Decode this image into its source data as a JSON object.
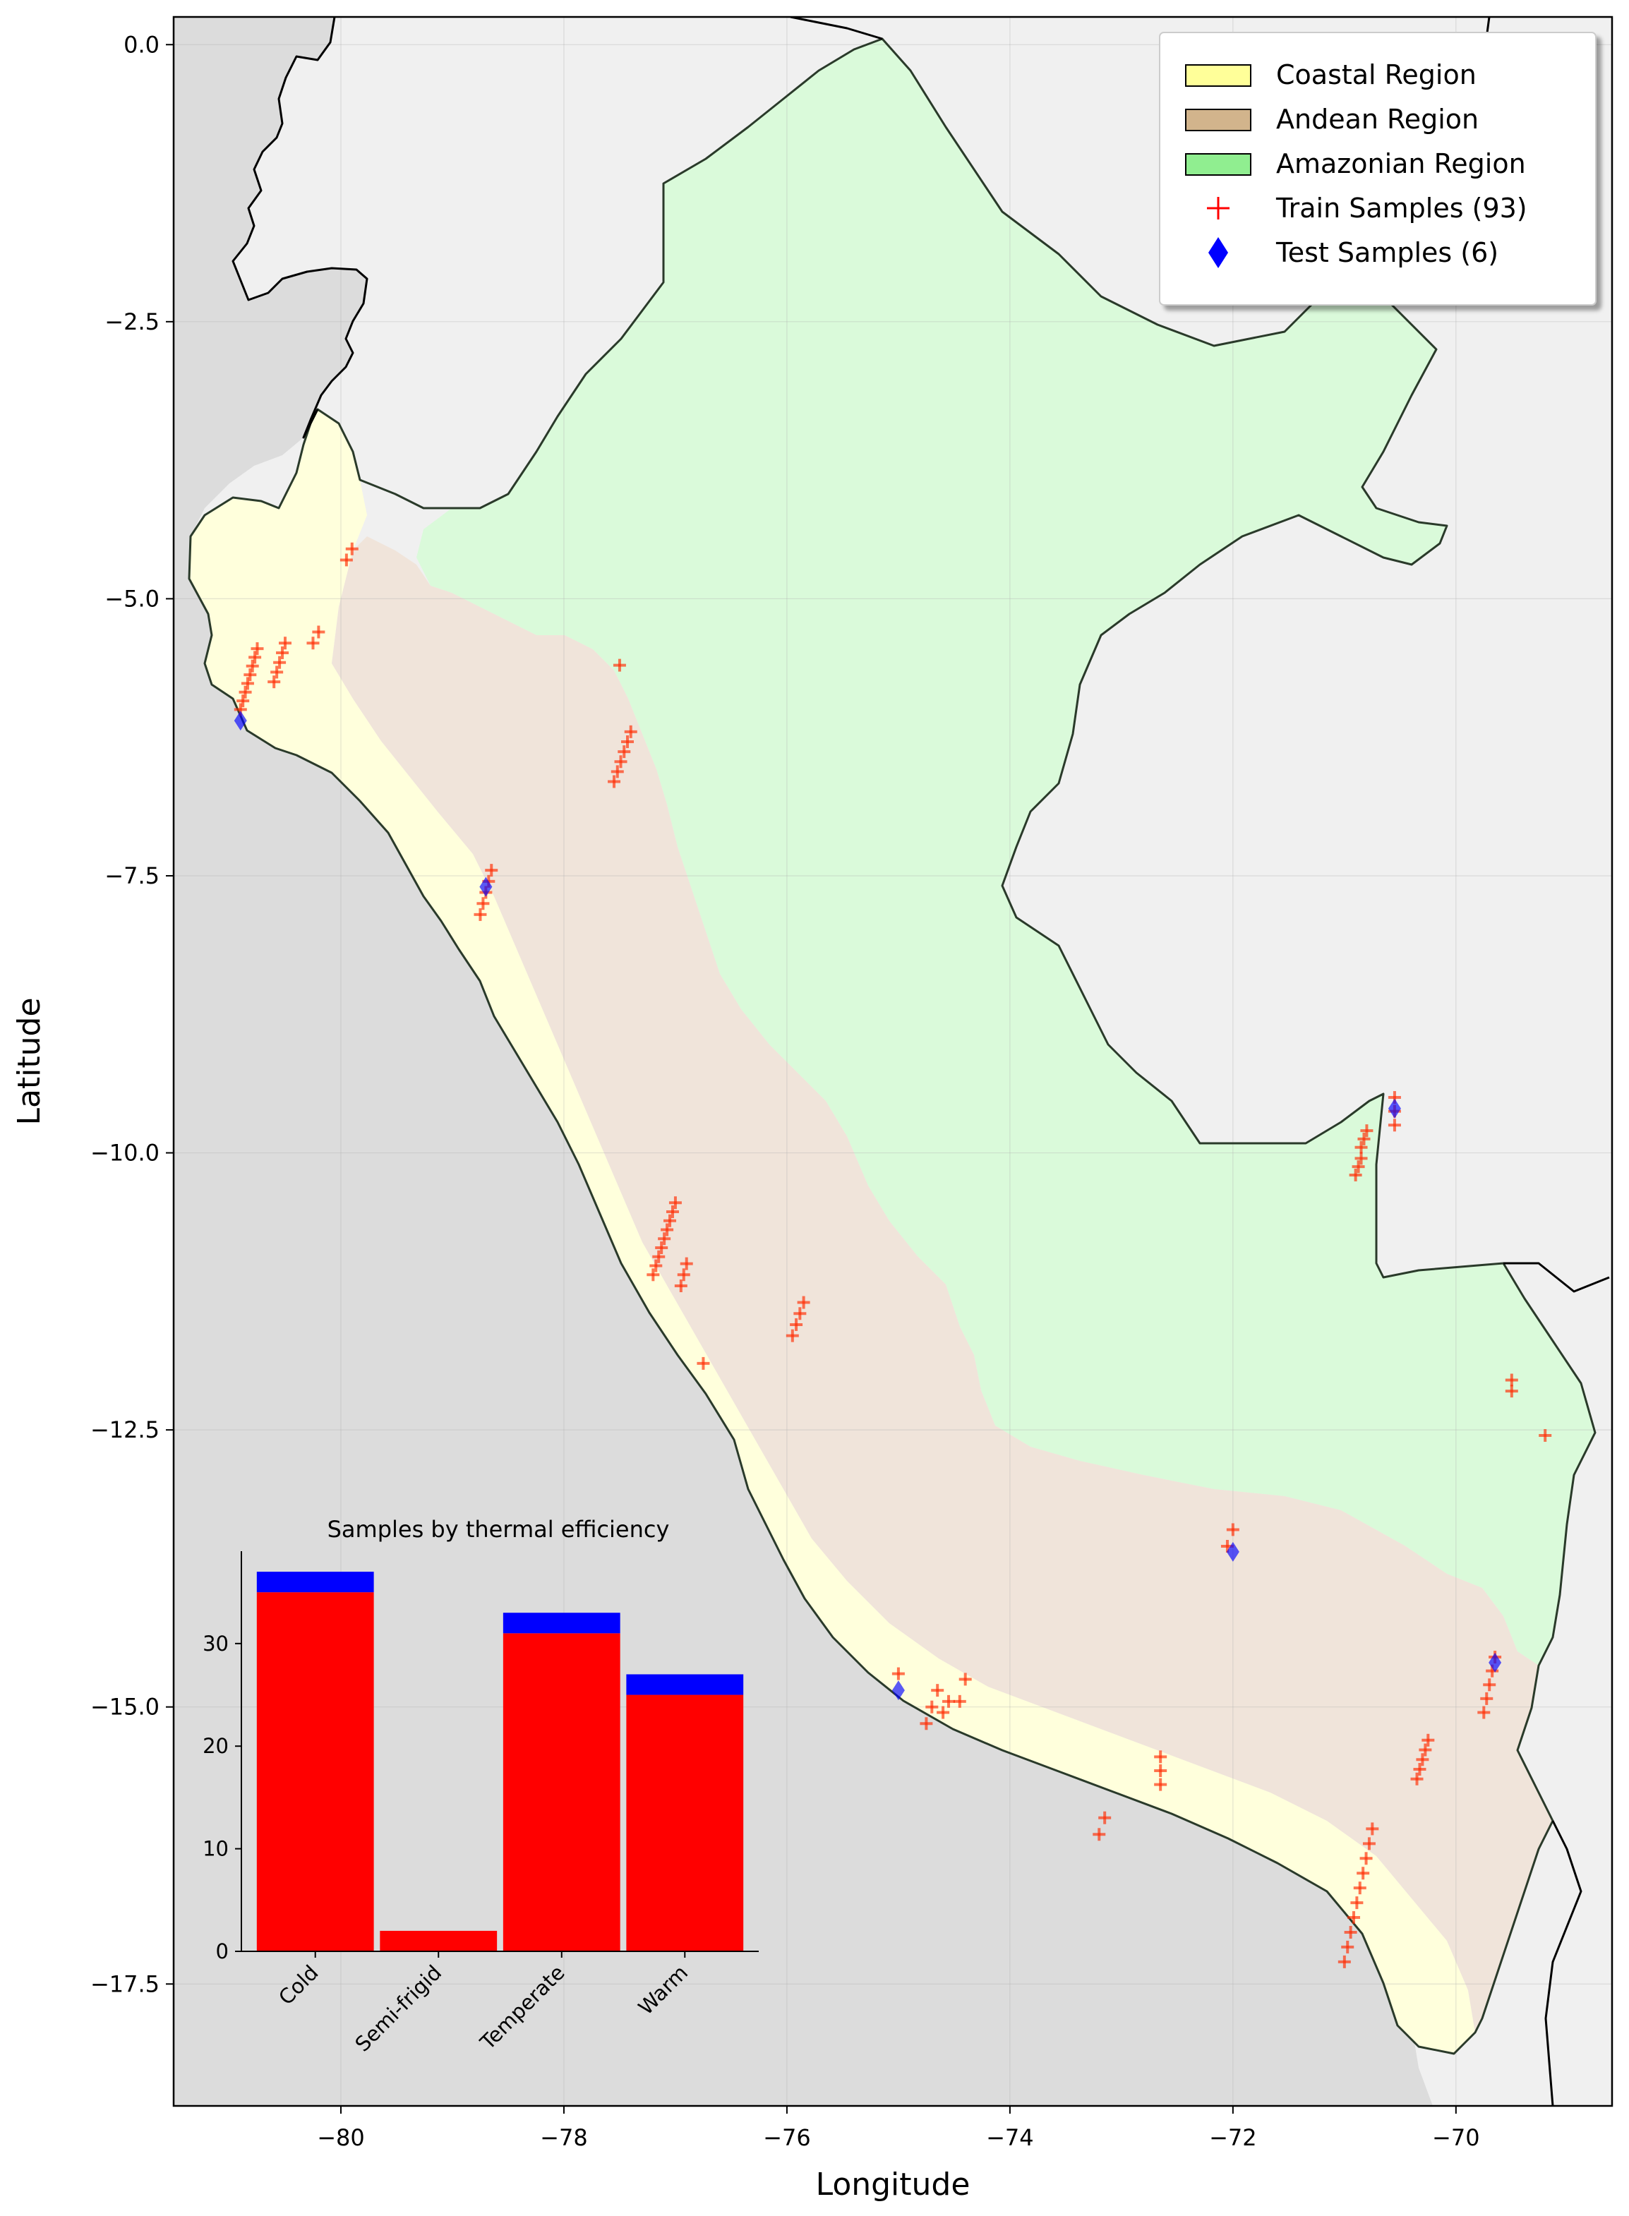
{
  "chart_data": [
    {
      "type": "scatter",
      "xlabel": "Longitude",
      "ylabel": "Latitude",
      "xlim": [
        -81.5,
        -68.6
      ],
      "ylim": [
        -18.6,
        0.25
      ],
      "xticks": [
        -80,
        -78,
        -76,
        -74,
        -72,
        -70
      ],
      "yticks": [
        0.0,
        -2.5,
        -5.0,
        -7.5,
        -10.0,
        -12.5,
        -15.0,
        -17.5
      ],
      "xtick_labels": [
        "−80",
        "−78",
        "−76",
        "−74",
        "−72",
        "−70"
      ],
      "ytick_labels": [
        "0.0",
        "−2.5",
        "−5.0",
        "−7.5",
        "−10.0",
        "−12.5",
        "−15.0",
        "−17.5"
      ],
      "grid": true,
      "legend_position": "top-right",
      "legend": [
        {
          "label": "Coastal Region",
          "kind": "patch",
          "color": "#ffff99"
        },
        {
          "label": "Andean Region",
          "kind": "patch",
          "color": "#d2b48c"
        },
        {
          "label": "Amazonian Region",
          "kind": "patch",
          "color": "#90ee90"
        },
        {
          "label": "Train Samples (93)",
          "kind": "plus",
          "color": "#ff0000"
        },
        {
          "label": "Test Samples (6)",
          "kind": "diamond",
          "color": "#0000ff"
        }
      ],
      "region_colors": {
        "coastal": "#ffffdc",
        "andean": "#f0e4da",
        "amazonian": "#dafada",
        "ocean": "#dcdcdc",
        "land": "#f0f0f0"
      },
      "train_clusters": [
        {
          "from": [
            -80.75,
            -5.45
          ],
          "to": [
            -80.9,
            -6.0
          ],
          "n": 8
        },
        {
          "from": [
            -80.5,
            -5.4
          ],
          "to": [
            -80.6,
            -5.75
          ],
          "n": 5
        },
        {
          "from": [
            -80.2,
            -5.3
          ],
          "to": [
            -80.25,
            -5.4
          ],
          "n": 2
        },
        {
          "from": [
            -79.9,
            -4.55
          ],
          "to": [
            -79.95,
            -4.65
          ],
          "n": 2
        },
        {
          "from": [
            -77.5,
            -5.6
          ],
          "to": [
            -77.5,
            -5.6
          ],
          "n": 1
        },
        {
          "from": [
            -77.4,
            -6.2
          ],
          "to": [
            -77.55,
            -6.65
          ],
          "n": 6
        },
        {
          "from": [
            -78.65,
            -7.45
          ],
          "to": [
            -78.75,
            -7.85
          ],
          "n": 5
        },
        {
          "from": [
            -77.0,
            -10.45
          ],
          "to": [
            -77.2,
            -11.1
          ],
          "n": 9
        },
        {
          "from": [
            -76.9,
            -11.0
          ],
          "to": [
            -76.95,
            -11.2
          ],
          "n": 3
        },
        {
          "from": [
            -76.75,
            -11.9
          ],
          "to": [
            -76.75,
            -11.9
          ],
          "n": 1
        },
        {
          "from": [
            -75.85,
            -11.35
          ],
          "to": [
            -75.95,
            -11.65
          ],
          "n": 4
        },
        {
          "from": [
            -72.0,
            -13.4
          ],
          "to": [
            -72.05,
            -13.55
          ],
          "n": 2
        },
        {
          "from": [
            -70.55,
            -9.5
          ],
          "to": [
            -70.55,
            -9.75
          ],
          "n": 3
        },
        {
          "from": [
            -70.8,
            -9.8
          ],
          "to": [
            -70.85,
            -9.95
          ],
          "n": 3
        },
        {
          "from": [
            -70.85,
            -10.05
          ],
          "to": [
            -70.9,
            -10.2
          ],
          "n": 3
        },
        {
          "from": [
            -69.5,
            -12.05
          ],
          "to": [
            -69.5,
            -12.15
          ],
          "n": 2
        },
        {
          "from": [
            -69.2,
            -12.55
          ],
          "to": [
            -69.2,
            -12.55
          ],
          "n": 1
        },
        {
          "from": [
            -69.65,
            -14.55
          ],
          "to": [
            -69.75,
            -15.05
          ],
          "n": 5
        },
        {
          "from": [
            -70.25,
            -15.3
          ],
          "to": [
            -70.35,
            -15.65
          ],
          "n": 5
        },
        {
          "from": [
            -70.75,
            -16.1
          ],
          "to": [
            -71.0,
            -17.3
          ],
          "n": 10
        },
        {
          "from": [
            -72.65,
            -15.45
          ],
          "to": [
            -72.65,
            -15.7
          ],
          "n": 3
        },
        {
          "from": [
            -73.15,
            -16.0
          ],
          "to": [
            -73.2,
            -16.15
          ],
          "n": 2
        },
        {
          "from": [
            -74.4,
            -14.75
          ],
          "to": [
            -74.45,
            -14.95
          ],
          "n": 2
        },
        {
          "from": [
            -74.55,
            -14.95
          ],
          "to": [
            -74.6,
            -15.05
          ],
          "n": 2
        },
        {
          "from": [
            -74.65,
            -14.85
          ],
          "to": [
            -74.75,
            -15.15
          ],
          "n": 3
        },
        {
          "from": [
            -75.0,
            -14.7
          ],
          "to": [
            -75.0,
            -14.75
          ],
          "n": 1
        }
      ],
      "test_points": [
        {
          "lon": -80.9,
          "lat": -6.1
        },
        {
          "lon": -78.7,
          "lat": -7.6
        },
        {
          "lon": -70.55,
          "lat": -9.6
        },
        {
          "lon": -72.0,
          "lat": -13.6
        },
        {
          "lon": -69.65,
          "lat": -14.6
        },
        {
          "lon": -75.0,
          "lat": -14.85
        }
      ]
    },
    {
      "type": "bar",
      "title": "Samples by thermal efficiency",
      "categories": [
        "Cold",
        "Semi-frigid",
        "Temperate",
        "Warm"
      ],
      "series": [
        {
          "name": "Train Samples (93)",
          "color": "#ff0000",
          "values": [
            35,
            2,
            31,
            25
          ]
        },
        {
          "name": "Test Samples (6)",
          "color": "#0000ff",
          "values": [
            2,
            0,
            2,
            2
          ]
        }
      ],
      "stacked": true,
      "ylim": [
        0,
        39
      ],
      "yticks": [
        0,
        10,
        20,
        30
      ]
    }
  ]
}
